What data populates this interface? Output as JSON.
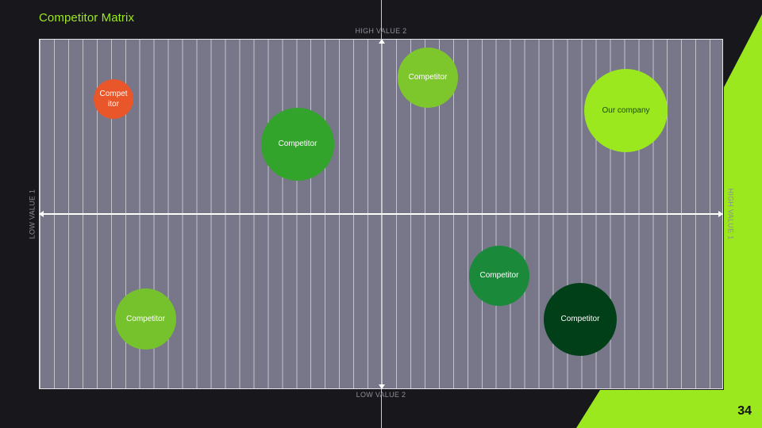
{
  "slide": {
    "title": "Competitor Matrix",
    "page_number": "34",
    "accent_color": "#9be81e",
    "background_color": "#17171c"
  },
  "axes": {
    "top": "HIGH VALUE 2",
    "bottom": "LOW VALUE 2",
    "left": "LOW VALUE 1",
    "right": "HIGH VALUE 1"
  },
  "bubbles": [
    {
      "label_lines": [
        "Compet",
        "itor"
      ],
      "color": "#e8562a"
    },
    {
      "label_lines": [
        "Competitor"
      ],
      "color": "#7dc62c"
    },
    {
      "label_lines": [
        "Our company"
      ],
      "color": "#9be81e"
    },
    {
      "label_lines": [
        "Competitor"
      ],
      "color": "#33a42b"
    },
    {
      "label_lines": [
        "Competitor"
      ],
      "color": "#1a8a3a"
    },
    {
      "label_lines": [
        "Competitor"
      ],
      "color": "#76c22c"
    },
    {
      "label_lines": [
        "Competitor"
      ],
      "color": "#003f18"
    }
  ]
}
